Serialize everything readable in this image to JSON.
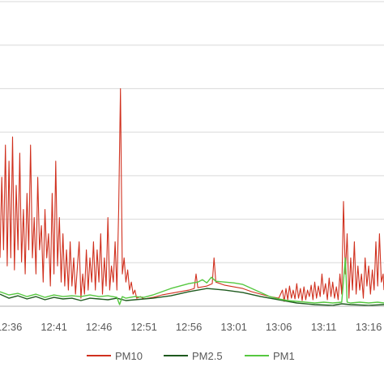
{
  "chart_data": {
    "type": "line",
    "title": "",
    "xlabel": "",
    "ylabel": "",
    "x_ticks": [
      "12:36",
      "12:41",
      "12:46",
      "12:51",
      "12:56",
      "13:01",
      "13:06",
      "13:11",
      "13:16"
    ],
    "x_range_minutes": [
      -1.0,
      41.7
    ],
    "y_range": [
      0,
      380
    ],
    "y_gridlines": [
      0,
      54,
      108,
      162,
      216,
      270,
      324,
      378
    ],
    "grid": true,
    "legend_position": "bottom",
    "colors": {
      "PM10": "#d0301e",
      "PM2.5": "#1e5a1e",
      "PM1": "#56c840"
    },
    "series": [
      {
        "name": "PM10",
        "color": "#d0301e",
        "points": [
          [
            -1.0,
            60
          ],
          [
            -0.8,
            160
          ],
          [
            -0.6,
            70
          ],
          [
            -0.4,
            200
          ],
          [
            -0.2,
            50
          ],
          [
            0.0,
            180
          ],
          [
            0.2,
            60
          ],
          [
            0.4,
            210
          ],
          [
            0.6,
            45
          ],
          [
            0.8,
            150
          ],
          [
            1.0,
            70
          ],
          [
            1.2,
            190
          ],
          [
            1.4,
            55
          ],
          [
            1.6,
            120
          ],
          [
            1.8,
            40
          ],
          [
            2.0,
            140
          ],
          [
            2.2,
            70
          ],
          [
            2.4,
            200
          ],
          [
            2.6,
            60
          ],
          [
            2.8,
            110
          ],
          [
            3.0,
            40
          ],
          [
            3.2,
            160
          ],
          [
            3.4,
            70
          ],
          [
            3.6,
            100
          ],
          [
            3.8,
            30
          ],
          [
            4.0,
            120
          ],
          [
            4.2,
            60
          ],
          [
            4.4,
            90
          ],
          [
            4.6,
            25
          ],
          [
            4.8,
            140
          ],
          [
            5.0,
            40
          ],
          [
            5.2,
            180
          ],
          [
            5.4,
            50
          ],
          [
            5.6,
            110
          ],
          [
            5.8,
            30
          ],
          [
            6.0,
            90
          ],
          [
            6.2,
            25
          ],
          [
            6.4,
            70
          ],
          [
            6.6,
            20
          ],
          [
            6.8,
            80
          ],
          [
            7.0,
            25
          ],
          [
            7.2,
            60
          ],
          [
            7.4,
            15
          ],
          [
            7.8,
            80
          ],
          [
            8.0,
            10
          ],
          [
            8.2,
            40
          ],
          [
            8.4,
            15
          ],
          [
            8.6,
            70
          ],
          [
            8.8,
            20
          ],
          [
            9.0,
            60
          ],
          [
            9.2,
            30
          ],
          [
            9.4,
            80
          ],
          [
            9.6,
            20
          ],
          [
            9.8,
            70
          ],
          [
            10.0,
            30
          ],
          [
            10.2,
            90
          ],
          [
            10.4,
            15
          ],
          [
            10.6,
            60
          ],
          [
            10.8,
            25
          ],
          [
            11.0,
            110
          ],
          [
            11.2,
            20
          ],
          [
            11.4,
            50
          ],
          [
            11.6,
            30
          ],
          [
            11.8,
            80
          ],
          [
            12.0,
            20
          ],
          [
            12.2,
            120
          ],
          [
            12.4,
            270
          ],
          [
            12.6,
            40
          ],
          [
            12.8,
            60
          ],
          [
            13.0,
            30
          ],
          [
            13.2,
            45
          ],
          [
            13.4,
            20
          ],
          [
            13.6,
            30
          ],
          [
            13.8,
            15
          ],
          [
            14.0,
            20
          ],
          [
            14.2,
            10
          ],
          [
            14.6,
            12
          ],
          [
            15.0,
            9
          ],
          [
            16.0,
            11
          ],
          [
            17.0,
            14
          ],
          [
            18.0,
            16
          ],
          [
            19.0,
            18
          ],
          [
            20.0,
            20
          ],
          [
            20.6,
            22
          ],
          [
            20.8,
            40
          ],
          [
            21.0,
            23
          ],
          [
            22.0,
            25
          ],
          [
            22.6,
            28
          ],
          [
            22.8,
            60
          ],
          [
            23.0,
            30
          ],
          [
            24.0,
            26
          ],
          [
            25.0,
            24
          ],
          [
            26.0,
            22
          ],
          [
            27.0,
            18
          ],
          [
            28.0,
            15
          ],
          [
            29.0,
            12
          ],
          [
            30.0,
            10
          ],
          [
            30.4,
            20
          ],
          [
            30.6,
            6
          ],
          [
            30.8,
            22
          ],
          [
            31.0,
            8
          ],
          [
            31.2,
            25
          ],
          [
            31.4,
            10
          ],
          [
            31.6,
            20
          ],
          [
            31.8,
            9
          ],
          [
            32.0,
            28
          ],
          [
            32.2,
            10
          ],
          [
            32.4,
            22
          ],
          [
            32.6,
            7
          ],
          [
            32.8,
            24
          ],
          [
            33.0,
            8
          ],
          [
            33.2,
            20
          ],
          [
            33.4,
            12
          ],
          [
            33.6,
            26
          ],
          [
            33.8,
            8
          ],
          [
            34.0,
            30
          ],
          [
            34.2,
            10
          ],
          [
            34.4,
            25
          ],
          [
            34.6,
            12
          ],
          [
            34.8,
            40
          ],
          [
            35.0,
            15
          ],
          [
            35.2,
            28
          ],
          [
            35.4,
            8
          ],
          [
            35.6,
            35
          ],
          [
            35.8,
            12
          ],
          [
            36.0,
            30
          ],
          [
            36.2,
            10
          ],
          [
            36.4,
            24
          ],
          [
            36.6,
            8
          ],
          [
            36.8,
            40
          ],
          [
            37.0,
            15
          ],
          [
            37.2,
            130
          ],
          [
            37.4,
            40
          ],
          [
            37.6,
            90
          ],
          [
            37.8,
            10
          ],
          [
            38.0,
            60
          ],
          [
            38.2,
            20
          ],
          [
            38.4,
            80
          ],
          [
            38.6,
            15
          ],
          [
            38.8,
            50
          ],
          [
            39.0,
            20
          ],
          [
            39.2,
            40
          ],
          [
            39.4,
            10
          ],
          [
            39.6,
            60
          ],
          [
            39.8,
            25
          ],
          [
            40.0,
            50
          ],
          [
            40.2,
            15
          ],
          [
            40.4,
            45
          ],
          [
            40.6,
            20
          ],
          [
            40.8,
            80
          ],
          [
            41.0,
            25
          ],
          [
            41.2,
            90
          ],
          [
            41.4,
            30
          ],
          [
            41.6,
            40
          ],
          [
            41.7,
            20
          ]
        ]
      },
      {
        "name": "PM2.5",
        "color": "#1e5a1e",
        "points": [
          [
            -1.0,
            15
          ],
          [
            0.0,
            10
          ],
          [
            1.0,
            13
          ],
          [
            2.0,
            9
          ],
          [
            3.0,
            12
          ],
          [
            4.0,
            8
          ],
          [
            5.0,
            11
          ],
          [
            6.0,
            9
          ],
          [
            7.0,
            10
          ],
          [
            8.0,
            7
          ],
          [
            9.0,
            10
          ],
          [
            10.0,
            9
          ],
          [
            11.0,
            8
          ],
          [
            12.0,
            10
          ],
          [
            13.0,
            7
          ],
          [
            14.0,
            8
          ],
          [
            16.0,
            10
          ],
          [
            18.0,
            13
          ],
          [
            20.0,
            18
          ],
          [
            22.0,
            22
          ],
          [
            24.0,
            20
          ],
          [
            26.0,
            17
          ],
          [
            28.0,
            12
          ],
          [
            30.0,
            8
          ],
          [
            32.0,
            4
          ],
          [
            34.0,
            2
          ],
          [
            36.0,
            1
          ],
          [
            37.0,
            3
          ],
          [
            38.0,
            2
          ],
          [
            40.0,
            1
          ],
          [
            41.7,
            2
          ]
        ]
      },
      {
        "name": "PM1",
        "color": "#56c840",
        "points": [
          [
            -1.0,
            18
          ],
          [
            0.0,
            14
          ],
          [
            1.0,
            16
          ],
          [
            2.0,
            12
          ],
          [
            3.0,
            15
          ],
          [
            4.0,
            11
          ],
          [
            5.0,
            14
          ],
          [
            6.0,
            12
          ],
          [
            7.0,
            13
          ],
          [
            8.0,
            12
          ],
          [
            9.0,
            14
          ],
          [
            10.0,
            12
          ],
          [
            11.0,
            13
          ],
          [
            12.0,
            11
          ],
          [
            12.3,
            2
          ],
          [
            12.6,
            12
          ],
          [
            13.0,
            10
          ],
          [
            14.0,
            12
          ],
          [
            15.0,
            11
          ],
          [
            16.0,
            14
          ],
          [
            17.0,
            18
          ],
          [
            18.0,
            22
          ],
          [
            19.0,
            25
          ],
          [
            20.0,
            28
          ],
          [
            21.0,
            30
          ],
          [
            21.5,
            33
          ],
          [
            22.0,
            29
          ],
          [
            22.5,
            36
          ],
          [
            23.0,
            31
          ],
          [
            24.0,
            30
          ],
          [
            25.0,
            29
          ],
          [
            26.0,
            27
          ],
          [
            27.0,
            22
          ],
          [
            28.0,
            17
          ],
          [
            29.0,
            12
          ],
          [
            30.0,
            9
          ],
          [
            31.0,
            7
          ],
          [
            32.0,
            6
          ],
          [
            33.0,
            5
          ],
          [
            34.0,
            4
          ],
          [
            35.0,
            5
          ],
          [
            36.0,
            4
          ],
          [
            37.0,
            5
          ],
          [
            37.4,
            60
          ],
          [
            37.6,
            5
          ],
          [
            38.0,
            4
          ],
          [
            39.0,
            5
          ],
          [
            40.0,
            4
          ],
          [
            41.0,
            5
          ],
          [
            41.7,
            4
          ]
        ]
      }
    ]
  }
}
